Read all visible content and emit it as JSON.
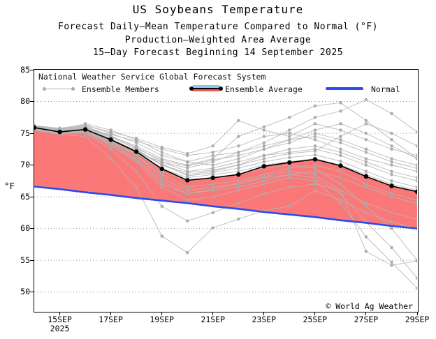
{
  "header": {
    "title": "US Soybeans Temperature",
    "subtitle1": "Forecast Daily–Mean Temperature Compared to Normal (°F)",
    "subtitle2": "Production–Weighted Area Average",
    "subtitle3": "15–Day Forecast Beginning 14 September 2025"
  },
  "legend": {
    "source": "National Weather Service Global Forecast System",
    "members_label": "Ensemble Members",
    "average_label": "Ensemble Average",
    "normal_label": "Normal"
  },
  "footer": {
    "copyright": "© World Ag Weather"
  },
  "chart_data": {
    "type": "line",
    "title": "US Soybeans Temperature",
    "xlabel": "",
    "ylabel": "°F",
    "ylim": [
      47,
      85
    ],
    "yticks": [
      50,
      55,
      60,
      65,
      70,
      75,
      80,
      85
    ],
    "grid": "dotted-horizontal",
    "legend_position": "top-left-inside",
    "x": [
      "14SEP",
      "15SEP",
      "16SEP",
      "17SEP",
      "18SEP",
      "19SEP",
      "20SEP",
      "21SEP",
      "22SEP",
      "23SEP",
      "24SEP",
      "25SEP",
      "26SEP",
      "27SEP",
      "28SEP",
      "29SEP"
    ],
    "x_tick_labels": [
      "15SEP",
      "17SEP",
      "19SEP",
      "21SEP",
      "23SEP",
      "25SEP",
      "27SEP",
      "29SEP"
    ],
    "x_year_label": "2025",
    "series": {
      "ensemble_average": [
        75.9,
        75.2,
        75.6,
        74.0,
        72.1,
        69.4,
        67.6,
        68.0,
        68.5,
        69.8,
        70.4,
        70.9,
        69.9,
        68.2,
        66.7,
        65.8
      ],
      "normal": [
        66.6,
        66.2,
        65.7,
        65.3,
        64.8,
        64.4,
        64.0,
        63.5,
        63.1,
        62.6,
        62.2,
        61.8,
        61.3,
        60.9,
        60.4,
        60.0
      ],
      "ensemble_members": [
        [
          76.1,
          75.5,
          76.0,
          74.5,
          72.5,
          70.0,
          68.5,
          69.0,
          70.0,
          71.5,
          72.5,
          73.0,
          72.0,
          70.5,
          69.0,
          68.0
        ],
        [
          75.8,
          75.0,
          75.3,
          73.5,
          71.5,
          68.5,
          66.5,
          67.0,
          67.5,
          68.5,
          69.5,
          70.0,
          69.0,
          67.0,
          65.5,
          64.5
        ],
        [
          76.0,
          75.6,
          76.5,
          75.5,
          74.0,
          72.0,
          70.5,
          70.0,
          71.0,
          72.5,
          74.0,
          75.5,
          76.5,
          75.0,
          73.0,
          71.0
        ],
        [
          75.9,
          75.3,
          75.8,
          74.5,
          73.0,
          71.0,
          70.0,
          71.0,
          74.5,
          76.0,
          77.5,
          79.3,
          79.8,
          77.0,
          74.0,
          71.0
        ],
        [
          76.0,
          75.2,
          75.5,
          73.8,
          72.0,
          70.5,
          69.5,
          70.5,
          72.0,
          73.5,
          75.5,
          77.5,
          78.5,
          80.3,
          78.1,
          75.2
        ],
        [
          75.5,
          74.8,
          74.5,
          71.0,
          66.5,
          58.8,
          56.2,
          60.1,
          61.5,
          62.8,
          63.5,
          66.0,
          64.5,
          62.5,
          61.0,
          60.0
        ],
        [
          75.7,
          75.0,
          75.0,
          72.5,
          69.0,
          63.5,
          61.2,
          62.5,
          64.0,
          65.5,
          66.5,
          67.0,
          66.0,
          64.0,
          62.5,
          61.5
        ],
        [
          75.8,
          75.1,
          75.4,
          73.8,
          71.5,
          68.0,
          66.0,
          66.5,
          67.0,
          68.0,
          68.5,
          68.0,
          65.5,
          61.0,
          57.0,
          52.2
        ],
        [
          76.0,
          75.4,
          75.8,
          74.2,
          72.0,
          69.0,
          67.5,
          68.0,
          68.5,
          69.5,
          70.0,
          69.5,
          67.0,
          63.5,
          60.0,
          55.0
        ],
        [
          75.6,
          74.9,
          75.2,
          73.0,
          70.5,
          66.5,
          64.5,
          65.0,
          66.0,
          67.0,
          68.0,
          67.5,
          64.0,
          58.7,
          54.7,
          50.6
        ],
        [
          76.2,
          75.8,
          76.3,
          75.0,
          73.5,
          71.5,
          70.5,
          71.5,
          72.0,
          73.0,
          74.0,
          74.5,
          73.5,
          72.0,
          70.5,
          69.5
        ],
        [
          75.9,
          75.3,
          75.7,
          74.8,
          73.8,
          72.5,
          71.5,
          72.0,
          73.0,
          74.5,
          75.0,
          74.0,
          72.5,
          71.0,
          70.0,
          69.0
        ],
        [
          76.1,
          75.6,
          76.1,
          74.6,
          72.8,
          70.5,
          69.0,
          69.5,
          70.5,
          71.5,
          72.0,
          72.5,
          71.5,
          70.0,
          68.5,
          67.5
        ],
        [
          75.7,
          75.1,
          75.5,
          73.6,
          71.8,
          69.5,
          68.0,
          68.5,
          69.0,
          70.0,
          70.5,
          71.0,
          70.0,
          68.5,
          67.0,
          66.0
        ],
        [
          75.8,
          75.2,
          75.6,
          74.0,
          72.2,
          70.0,
          68.8,
          69.2,
          70.0,
          71.0,
          71.8,
          72.2,
          74.5,
          76.5,
          75.0,
          73.0
        ],
        [
          76.0,
          75.5,
          75.9,
          74.4,
          72.6,
          70.8,
          69.8,
          70.8,
          71.5,
          72.5,
          73.5,
          75.0,
          74.0,
          72.5,
          71.0,
          70.0
        ],
        [
          75.6,
          75.0,
          75.3,
          73.2,
          70.8,
          67.0,
          65.5,
          66.0,
          66.5,
          67.5,
          68.5,
          69.0,
          68.0,
          66.5,
          65.0,
          64.0
        ],
        [
          75.9,
          75.4,
          75.7,
          74.1,
          72.3,
          70.2,
          68.3,
          68.8,
          69.5,
          70.5,
          71.2,
          71.6,
          70.6,
          69.0,
          67.5,
          66.5
        ],
        [
          76.2,
          75.7,
          76.2,
          75.2,
          74.2,
          72.8,
          71.8,
          73.0,
          77.0,
          75.5,
          74.5,
          76.5,
          75.5,
          74.0,
          72.5,
          71.5
        ],
        [
          75.7,
          75.2,
          75.5,
          73.4,
          71.0,
          67.5,
          65.5,
          66.2,
          67.2,
          68.2,
          69.0,
          68.5,
          66.0,
          56.4,
          54.2,
          54.9
        ]
      ]
    },
    "colors": {
      "fill": "#FA5A5A",
      "normal": "#2B4BF0",
      "members": "#B5B5B5",
      "members_dot": "#A9A9A9",
      "average": "#000000",
      "grid": "#999999",
      "legend_band_top": "#8CC6F2",
      "legend_band_bottom": "#F9595B"
    }
  }
}
